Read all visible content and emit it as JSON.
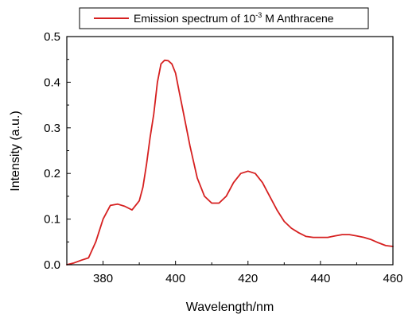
{
  "chart_data": {
    "type": "line",
    "title": "",
    "xlabel": "Wavelength/nm",
    "ylabel": "Intensity (a.u.)",
    "xlim": [
      370,
      460
    ],
    "ylim": [
      0.0,
      0.5
    ],
    "x_ticks": [
      380,
      400,
      420,
      440,
      460
    ],
    "x_tick_labels": [
      "380",
      "400",
      "420",
      "440",
      "460"
    ],
    "y_ticks": [
      0.0,
      0.1,
      0.2,
      0.3,
      0.4,
      0.5
    ],
    "y_tick_labels": [
      "0.0",
      "0.1",
      "0.2",
      "0.3",
      "0.4",
      "0.5"
    ],
    "legend": {
      "placement": "top",
      "prefix": "Emission spectrum of 10",
      "superscript": "-3",
      "suffix": " M Anthracene"
    },
    "series": [
      {
        "name": "Emission spectrum of 10-3 M Anthracene",
        "color": "#d62020",
        "x": [
          370,
          372,
          374,
          376,
          378,
          380,
          382,
          384,
          386,
          388,
          390,
          391,
          392,
          393,
          394,
          395,
          396,
          397,
          398,
          399,
          400,
          401,
          402,
          404,
          406,
          408,
          410,
          412,
          414,
          416,
          418,
          420,
          422,
          424,
          426,
          428,
          430,
          432,
          434,
          436,
          438,
          440,
          442,
          444,
          446,
          448,
          450,
          452,
          454,
          456,
          458,
          460
        ],
        "y": [
          0.0,
          0.004,
          0.01,
          0.015,
          0.05,
          0.1,
          0.13,
          0.133,
          0.128,
          0.12,
          0.14,
          0.17,
          0.22,
          0.28,
          0.33,
          0.4,
          0.44,
          0.448,
          0.447,
          0.44,
          0.42,
          0.38,
          0.34,
          0.26,
          0.19,
          0.15,
          0.135,
          0.135,
          0.15,
          0.18,
          0.2,
          0.205,
          0.2,
          0.18,
          0.15,
          0.12,
          0.095,
          0.08,
          0.07,
          0.062,
          0.06,
          0.06,
          0.06,
          0.063,
          0.066,
          0.066,
          0.063,
          0.06,
          0.055,
          0.048,
          0.042,
          0.04
        ]
      }
    ]
  }
}
